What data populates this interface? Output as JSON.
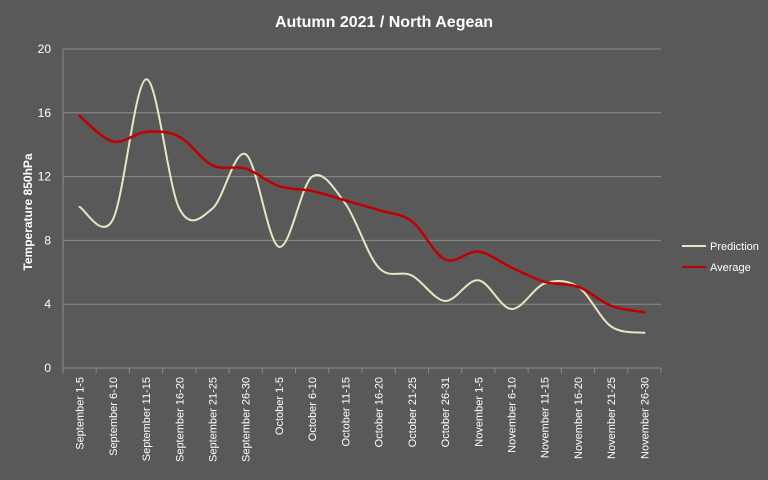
{
  "chart_data": {
    "type": "line",
    "title": "Autumn 2021 / North Aegean",
    "xlabel": "",
    "ylabel": "Temperature 850hPa",
    "ylim": [
      0,
      20
    ],
    "yticks": [
      0,
      4,
      8,
      12,
      16,
      20
    ],
    "grid": true,
    "legend_position": "right",
    "categories": [
      "September 1-5",
      "September 6-10",
      "September 11-15",
      "September 16-20",
      "September 21-25",
      "September 26-30",
      "October 1-5",
      "October 6-10",
      "October 11-15",
      "October 16-20",
      "October 21-25",
      "October 26-31",
      "November 1-5",
      "November 6-10",
      "November 11-15",
      "November 16-20",
      "November 21-25",
      "November 26-30"
    ],
    "series": [
      {
        "name": "Prediction",
        "color": "#e8e6c2",
        "values": [
          10.1,
          9.3,
          18.1,
          10.0,
          10.0,
          13.4,
          7.6,
          12.0,
          10.3,
          6.3,
          5.8,
          4.2,
          5.5,
          3.7,
          5.3,
          5.1,
          2.6,
          2.2
        ]
      },
      {
        "name": "Average",
        "color": "#c00000",
        "values": [
          15.8,
          14.2,
          14.8,
          14.5,
          12.7,
          12.5,
          11.4,
          11.1,
          10.5,
          9.9,
          9.2,
          6.8,
          7.3,
          6.3,
          5.4,
          5.1,
          3.9,
          3.5
        ]
      }
    ]
  }
}
